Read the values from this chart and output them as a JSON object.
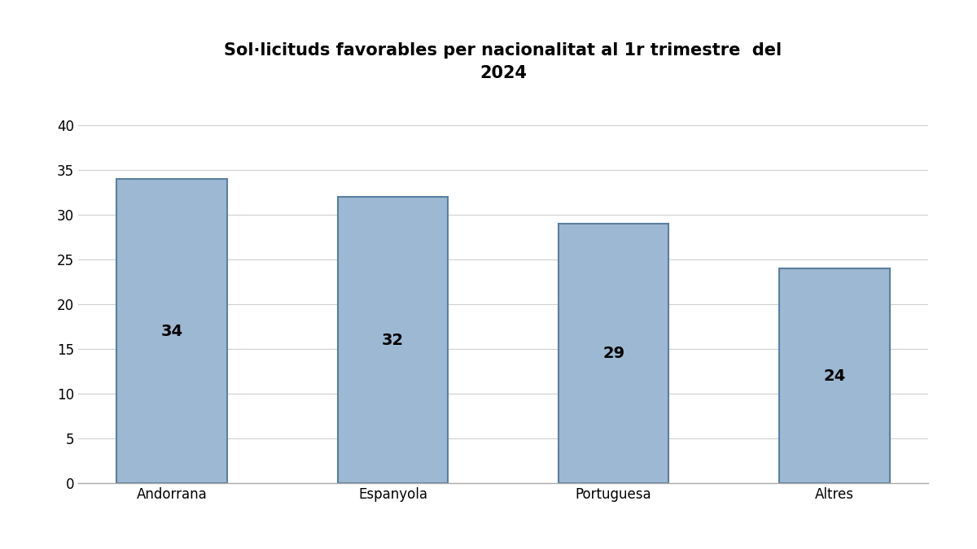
{
  "title_line1": "Sol·licituds favorables per nacionalitat al 1r trimestre  del",
  "title_line2": "2024",
  "categories": [
    "Andorrana",
    "Espanyola",
    "Portuguesa",
    "Altres"
  ],
  "values": [
    34,
    32,
    29,
    24
  ],
  "bar_color": "#9db8d2",
  "bar_edge_color": "#5a7fa0",
  "label_color": "#000000",
  "label_fontsize": 14,
  "label_fontweight": "bold",
  "title_fontsize": 15,
  "title_fontweight": "bold",
  "yticks": [
    0,
    5,
    10,
    15,
    20,
    25,
    30,
    35,
    40
  ],
  "ylim": [
    0,
    43
  ],
  "tick_fontsize": 12,
  "xtick_fontsize": 12,
  "background_color": "#ffffff",
  "grid_color": "#d0d0d0",
  "bar_width": 0.5
}
